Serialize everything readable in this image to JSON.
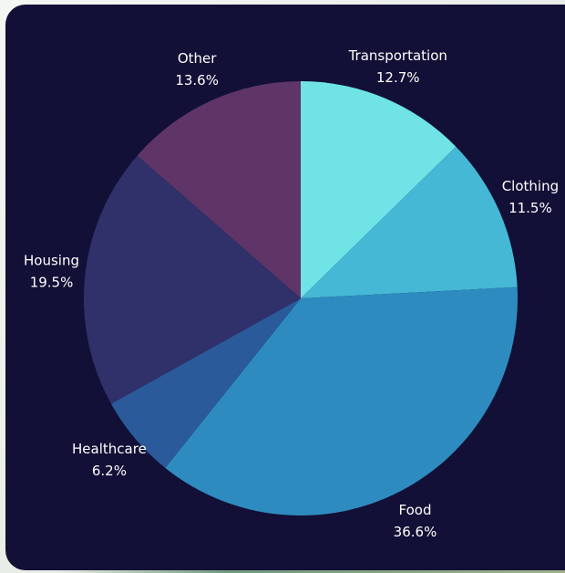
{
  "chart_data": {
    "type": "pie",
    "categories": [
      "Transportation",
      "Clothing",
      "Food",
      "Healthcare",
      "Housing",
      "Other"
    ],
    "values": [
      12.7,
      11.5,
      36.6,
      6.2,
      19.5,
      13.6
    ],
    "value_labels": [
      "12.7%",
      "11.5%",
      "36.6%",
      "6.2%",
      "19.5%",
      "13.6%"
    ],
    "colors": [
      "#6fe3e6",
      "#45b8d6",
      "#2e8bbf",
      "#2a5a9a",
      "#30306a",
      "#5e3566"
    ]
  }
}
